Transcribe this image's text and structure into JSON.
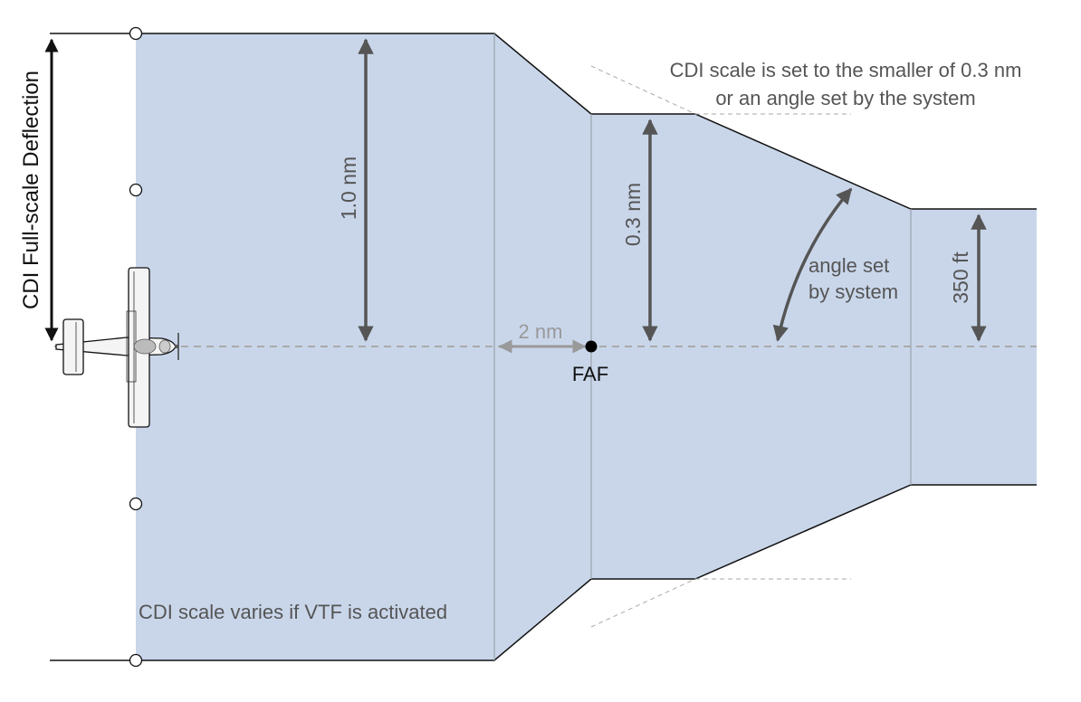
{
  "labels": {
    "cdi_full_scale": "CDI Full-scale Deflection",
    "dim_1nm": "1.0 nm",
    "dim_03nm": "0.3 nm",
    "dim_350ft": "350 ft",
    "dim_2nm": "2 nm",
    "faf": "FAF",
    "angle_line1": "angle set",
    "angle_line2": "by system",
    "cdi_note_line1": "CDI scale is set to the smaller of 0.3 nm",
    "cdi_note_line2": "or an angle set by the system",
    "vtf_note": "CDI scale varies if VTF is activated"
  },
  "colors": {
    "corridor_fill": "#c9d6ea",
    "outline": "#111111",
    "segment_divider": "#9aa3ad",
    "dim_arrow": "#555555",
    "light_arrow": "#999999",
    "centerline": "#aaaaaa",
    "text_dark": "#111111",
    "text_gray": "#555555",
    "faf_dot": "#000000"
  },
  "icons": {
    "aircraft": "airplane-top-view-icon",
    "cdi_dots": "cdi-dot-icon"
  }
}
